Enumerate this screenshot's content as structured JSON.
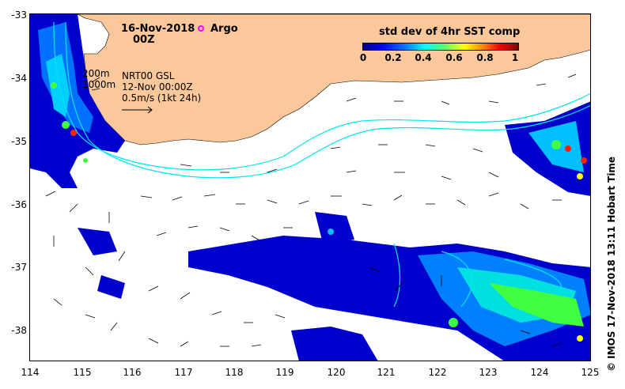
{
  "map": {
    "date": "16-Nov-2018",
    "time": "00Z",
    "argo_label": "Argo",
    "colorbar": {
      "title": "std dev of 4hr SST comp",
      "ticks": [
        "0",
        "0.2",
        "0.4",
        "0.6",
        "0.8",
        "1"
      ]
    },
    "contours": [
      "200m",
      "1000m"
    ],
    "product": "NRT00 GSL",
    "product_date": "12-Nov 00:00Z",
    "scale_label": "0.5m/s (1kt 24h)",
    "credit": "© IMOS 17-Nov-2018 13:11 Hobart Time",
    "x_ticks": [
      "114",
      "115",
      "116",
      "117",
      "118",
      "119",
      "120",
      "121",
      "122",
      "123",
      "124",
      "125"
    ],
    "y_ticks": [
      "-33",
      "-34",
      "-35",
      "-36",
      "-37",
      "-38"
    ],
    "colors": {
      "land": "#fac89a",
      "bathymetry": "#00e5ee",
      "argo": "#ff00ff",
      "cold": "#0000cc",
      "mid": "#00c0ff",
      "warm": "#40ff40",
      "hot": "#ff2000"
    }
  }
}
